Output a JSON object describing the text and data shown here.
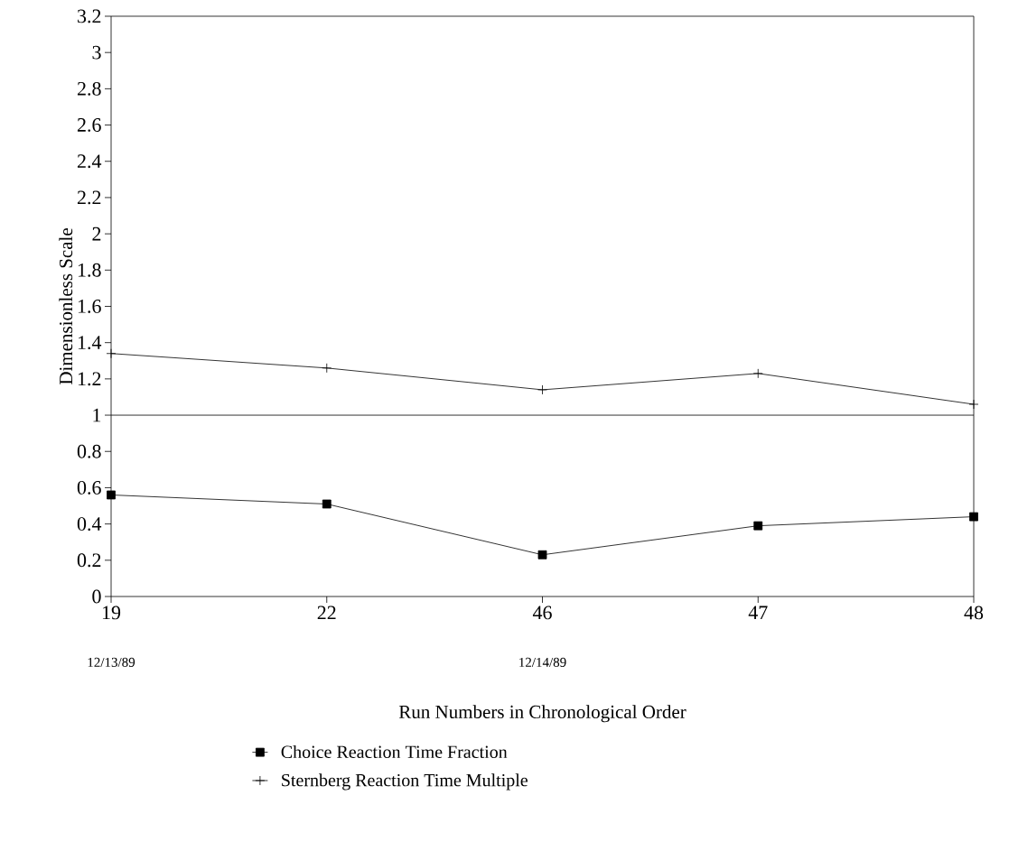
{
  "chart_data": {
    "type": "line",
    "xlabel": "Run Numbers in Chronological Order",
    "ylabel": "Dimensionless Scale",
    "categories": [
      "19",
      "22",
      "46",
      "47",
      "48"
    ],
    "series": [
      {
        "name": "Choice Reaction Time Fraction",
        "color": "#000000",
        "marker": "square",
        "values": [
          0.56,
          0.51,
          0.23,
          0.39,
          0.44
        ]
      },
      {
        "name": "Sternberg Reaction Time Multiple",
        "color": "#000000",
        "marker": "cross",
        "values": [
          1.34,
          1.26,
          1.14,
          1.23,
          1.06
        ]
      }
    ],
    "ylim": [
      0,
      3.2
    ],
    "yticks": [
      0,
      0.2,
      0.4,
      0.6,
      0.8,
      1,
      1.2,
      1.4,
      1.6,
      1.8,
      2,
      2.2,
      2.4,
      2.6,
      2.8,
      3,
      3.2
    ],
    "ref_lines": [
      {
        "axis": "y",
        "value": 1,
        "color": "#000000",
        "line_style": "solid"
      }
    ],
    "annotations": [
      "12/13/89",
      "12/14/89"
    ],
    "legend": "bottom",
    "grid": false,
    "line_style": "solid"
  }
}
